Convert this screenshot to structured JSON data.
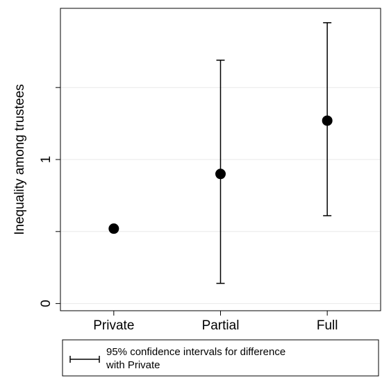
{
  "chart_data": {
    "type": "scatter",
    "title": "",
    "xlabel": "",
    "ylabel": "Inequality among trustees",
    "categories": [
      "Private",
      "Partial",
      "Full"
    ],
    "points": [
      {
        "category": "Private",
        "y": 0.52
      },
      {
        "category": "Partial",
        "y": 0.9,
        "ci_low": 0.14,
        "ci_high": 1.69
      },
      {
        "category": "Full",
        "y": 1.27,
        "ci_low": 0.61,
        "ci_high": 1.95
      }
    ],
    "y_ticks": [
      0,
      0.5,
      1,
      1.5
    ],
    "y_tick_labels": [
      "0",
      "",
      "1",
      ""
    ],
    "ylim": [
      -0.05,
      2.05
    ],
    "grid": true,
    "legend": {
      "position": "bottom",
      "line1": "95% confidence intervals for difference",
      "line2": "with Private"
    },
    "colors": {
      "marker": "#000000",
      "grid": "#e8e8e8",
      "axis": "#000000"
    }
  }
}
